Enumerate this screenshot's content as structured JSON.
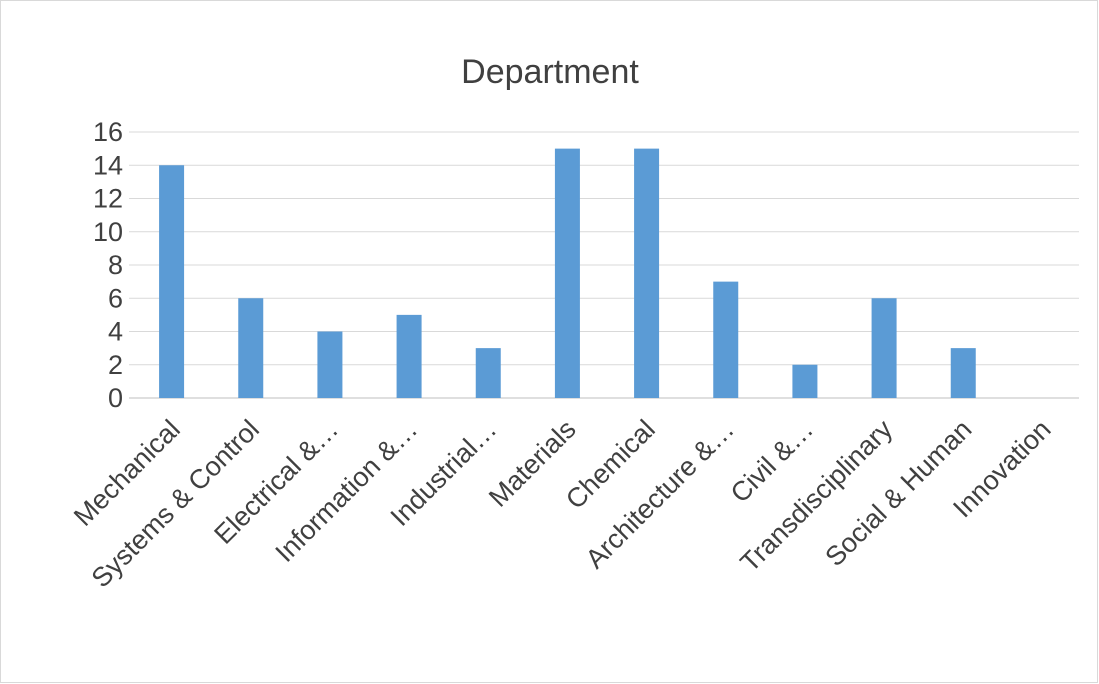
{
  "chart_data": {
    "type": "bar",
    "title": "Department",
    "categories": [
      "Mechanical",
      "Systems & Control",
      "Electrical &…",
      "Information &…",
      "Industrial…",
      "Materials",
      "Chemical",
      "Architecture &…",
      "Civil &…",
      "Transdisciplinary",
      "Social & Human",
      "Innovation"
    ],
    "values": [
      14,
      6,
      4,
      5,
      3,
      15,
      15,
      7,
      2,
      6,
      3,
      0
    ],
    "ylim": [
      0,
      16
    ],
    "yticks": [
      0,
      2,
      4,
      6,
      8,
      10,
      12,
      14,
      16
    ],
    "grid": true,
    "legend": "none",
    "bar_color": "#5b9bd5"
  }
}
